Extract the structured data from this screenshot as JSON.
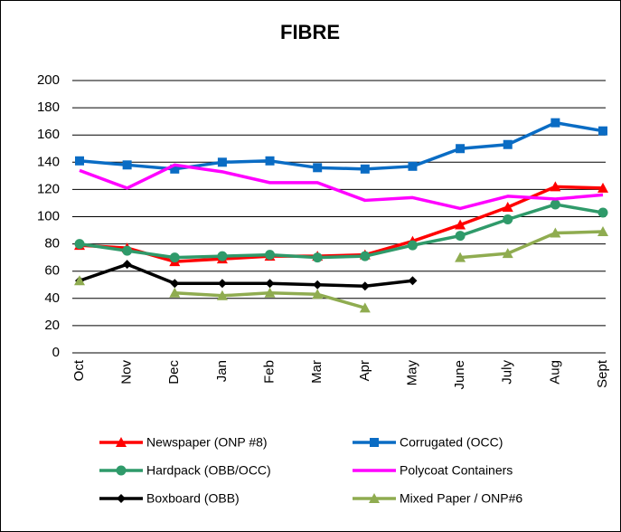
{
  "chart_data": {
    "type": "line",
    "title": "FIBRE",
    "categories": [
      "Oct",
      "Nov",
      "Dec",
      "Jan",
      "Feb",
      "Mar",
      "Apr",
      "May",
      "June",
      "July",
      "Aug",
      "Sept"
    ],
    "series": [
      {
        "name": "Newspaper (ONP #8)",
        "color": "#ff0000",
        "marker": "triangle",
        "values": [
          79,
          77,
          67,
          69,
          71,
          71,
          72,
          82,
          94,
          107,
          122,
          121
        ]
      },
      {
        "name": "Corrugated (OCC)",
        "color": "#0a6cc4",
        "marker": "square",
        "values": [
          141,
          138,
          135,
          140,
          141,
          136,
          135,
          137,
          150,
          153,
          169,
          163
        ]
      },
      {
        "name": "Hardpack (OBB/OCC)",
        "color": "#2f9a6a",
        "marker": "circle",
        "values": [
          80,
          75,
          70,
          71,
          72,
          70,
          71,
          79,
          86,
          98,
          109,
          103
        ]
      },
      {
        "name": "Polycoat Containers",
        "color": "#ff00ff",
        "marker": "none",
        "values": [
          134,
          121,
          138,
          133,
          125,
          125,
          112,
          114,
          106,
          115,
          113,
          116
        ]
      },
      {
        "name": "Boxboard (OBB)",
        "color": "#000000",
        "marker": "diamond",
        "values": [
          53,
          65,
          51,
          51,
          51,
          50,
          49,
          53,
          null,
          null,
          null,
          null
        ]
      },
      {
        "name": "Mixed Paper / ONP#6",
        "color": "#8fac50",
        "marker": "triangle",
        "values": [
          53,
          null,
          44,
          42,
          44,
          43,
          33,
          null,
          70,
          73,
          88,
          89
        ]
      }
    ],
    "ylim": [
      0,
      200
    ],
    "yticks": [
      0,
      20,
      40,
      60,
      80,
      100,
      120,
      140,
      160,
      180,
      200
    ],
    "grid": true,
    "legend": "bottom"
  }
}
